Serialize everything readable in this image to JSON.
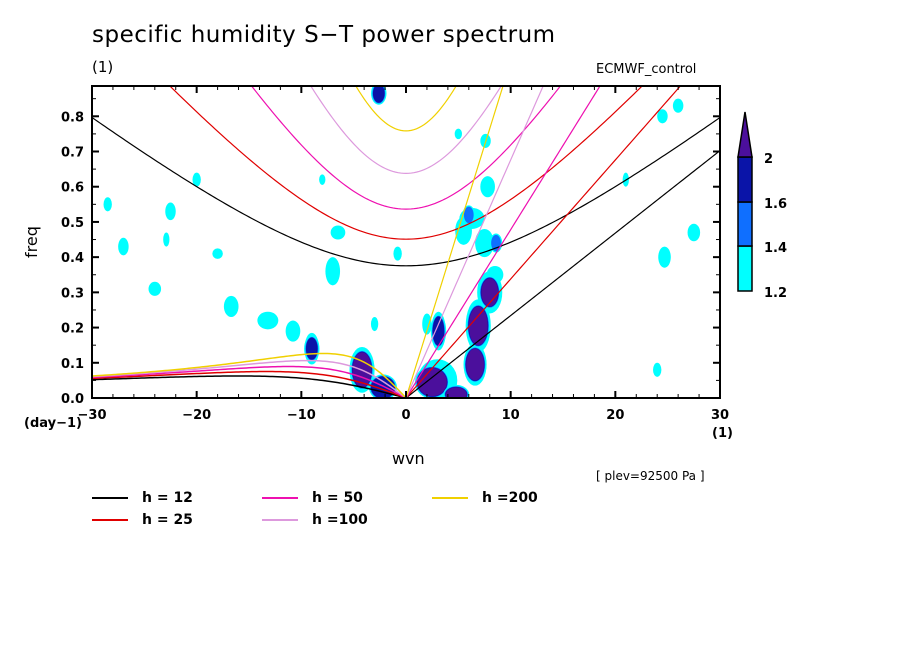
{
  "chart_data": {
    "type": "heatmap",
    "title": "specific humidity S−T power spectrum",
    "subtitle_left": "(1)",
    "subtitle_right": "ECMWF_control",
    "xlabel": "wvn",
    "ylabel": "freq",
    "x_unit": "(1)",
    "y_unit": "(day−1)",
    "annotation": "[ plev=92500 Pa ]",
    "xlim": [
      -30,
      30
    ],
    "ylim": [
      0.0,
      0.886
    ],
    "xticks": [
      -30,
      -20,
      -10,
      0,
      10,
      20,
      30
    ],
    "xtick_labels": [
      "−30",
      "−20",
      "−10",
      "0",
      "10",
      "20",
      "30"
    ],
    "yticks": [
      0.0,
      0.1,
      0.2,
      0.3,
      0.4,
      0.5,
      0.6,
      0.7,
      0.8
    ],
    "ytick_labels": [
      "0.0",
      "0.1",
      "0.2",
      "0.3",
      "0.4",
      "0.5",
      "0.6",
      "0.7",
      "0.8"
    ],
    "colorbar": {
      "levels": [
        1.2,
        1.4,
        1.6,
        2
      ],
      "labels": [
        "1.2",
        "1.4",
        "1.6",
        "2"
      ],
      "colors": [
        "#00ffff",
        "#0f6fff",
        "#0a14a8",
        "#4b0f9c"
      ],
      "extend": "max"
    },
    "dispersion_curves": {
      "equivalent_depths_m": [
        12,
        25,
        50,
        100,
        200
      ],
      "colors": [
        "#000000",
        "#e00000",
        "#ee10b0",
        "#dd99dd",
        "#f0d000"
      ],
      "legend_labels": [
        "h = 12",
        "h = 25",
        "h = 50",
        "h =100",
        "h =200"
      ],
      "modes": [
        "kelvin",
        "eig_n1",
        "er_n1"
      ]
    },
    "contour_regions": [
      {
        "k": -4.2,
        "f": 0.08,
        "rk": 0.9,
        "rf": 0.05,
        "level": 4
      },
      {
        "k": -4.2,
        "f": 0.08,
        "rk": 1.2,
        "rf": 0.065,
        "level": 1
      },
      {
        "k": -2.2,
        "f": 0.03,
        "rk": 1.1,
        "rf": 0.03,
        "level": 3
      },
      {
        "k": 2.5,
        "f": 0.045,
        "rk": 1.4,
        "rf": 0.04,
        "level": 4
      },
      {
        "k": 3.0,
        "f": 0.05,
        "rk": 1.9,
        "rf": 0.06,
        "level": 1
      },
      {
        "k": 4.8,
        "f": 0.01,
        "rk": 1.0,
        "rf": 0.02,
        "level": 4
      },
      {
        "k": 6.6,
        "f": 0.095,
        "rk": 0.85,
        "rf": 0.045,
        "level": 4
      },
      {
        "k": 6.6,
        "f": 0.095,
        "rk": 1.1,
        "rf": 0.06,
        "level": 1
      },
      {
        "k": 6.9,
        "f": 0.205,
        "rk": 0.9,
        "rf": 0.055,
        "level": 4
      },
      {
        "k": 6.9,
        "f": 0.205,
        "rk": 1.2,
        "rf": 0.075,
        "level": 1
      },
      {
        "k": 8.0,
        "f": 0.3,
        "rk": 0.8,
        "rf": 0.04,
        "level": 4
      },
      {
        "k": 8.0,
        "f": 0.3,
        "rk": 1.2,
        "rf": 0.06,
        "level": 1
      },
      {
        "k": 3.1,
        "f": 0.19,
        "rk": 0.5,
        "rf": 0.04,
        "level": 3
      },
      {
        "k": 3.1,
        "f": 0.19,
        "rk": 0.7,
        "rf": 0.055,
        "level": 1
      },
      {
        "k": 2.0,
        "f": 0.21,
        "rk": 0.45,
        "rf": 0.03,
        "level": 1
      },
      {
        "k": -9.0,
        "f": 0.14,
        "rk": 0.5,
        "rf": 0.03,
        "level": 3
      },
      {
        "k": -9.0,
        "f": 0.14,
        "rk": 0.7,
        "rf": 0.045,
        "level": 1
      },
      {
        "k": -10.8,
        "f": 0.19,
        "rk": 0.7,
        "rf": 0.03,
        "level": 1
      },
      {
        "k": -13.2,
        "f": 0.22,
        "rk": 1.0,
        "rf": 0.025,
        "level": 1
      },
      {
        "k": -16.7,
        "f": 0.26,
        "rk": 0.7,
        "rf": 0.03,
        "level": 1
      },
      {
        "k": -3.0,
        "f": 0.21,
        "rk": 0.35,
        "rf": 0.02,
        "level": 1
      },
      {
        "k": -0.8,
        "f": 0.41,
        "rk": 0.4,
        "rf": 0.02,
        "level": 1
      },
      {
        "k": 7.5,
        "f": 0.44,
        "rk": 0.9,
        "rf": 0.04,
        "level": 1
      },
      {
        "k": 8.6,
        "f": 0.44,
        "rk": 0.35,
        "rf": 0.02,
        "level": 2
      },
      {
        "k": 6.3,
        "f": 0.51,
        "rk": 1.2,
        "rf": 0.03,
        "level": 1
      },
      {
        "k": 5.5,
        "f": 0.475,
        "rk": 0.8,
        "rf": 0.04,
        "level": 1
      },
      {
        "k": 6.0,
        "f": 0.52,
        "rk": 0.35,
        "rf": 0.02,
        "level": 2
      },
      {
        "k": 8.5,
        "f": 0.35,
        "rk": 0.8,
        "rf": 0.025,
        "level": 1
      },
      {
        "k": 7.8,
        "f": 0.6,
        "rk": 0.7,
        "rf": 0.03,
        "level": 1
      },
      {
        "k": 7.6,
        "f": 0.73,
        "rk": 0.5,
        "rf": 0.02,
        "level": 1
      },
      {
        "k": -7.0,
        "f": 0.36,
        "rk": 0.7,
        "rf": 0.04,
        "level": 1
      },
      {
        "k": -2.6,
        "f": 0.865,
        "rk": 0.5,
        "rf": 0.025,
        "level": 3
      },
      {
        "k": -2.6,
        "f": 0.87,
        "rk": 0.7,
        "rf": 0.025,
        "level": 1
      },
      {
        "k": -22.5,
        "f": 0.53,
        "rk": 0.5,
        "rf": 0.025,
        "level": 1
      },
      {
        "k": -22.9,
        "f": 0.45,
        "rk": 0.3,
        "rf": 0.02,
        "level": 1
      },
      {
        "k": -24.0,
        "f": 0.31,
        "rk": 0.6,
        "rf": 0.02,
        "level": 1
      },
      {
        "k": -27.0,
        "f": 0.43,
        "rk": 0.5,
        "rf": 0.025,
        "level": 1
      },
      {
        "k": -28.5,
        "f": 0.55,
        "rk": 0.4,
        "rf": 0.02,
        "level": 1
      },
      {
        "k": -6.5,
        "f": 0.47,
        "rk": 0.7,
        "rf": 0.02,
        "level": 1
      },
      {
        "k": 24.7,
        "f": 0.4,
        "rk": 0.6,
        "rf": 0.03,
        "level": 1
      },
      {
        "k": 24.5,
        "f": 0.8,
        "rk": 0.5,
        "rf": 0.02,
        "level": 1
      },
      {
        "k": 26.0,
        "f": 0.83,
        "rk": 0.5,
        "rf": 0.02,
        "level": 1
      },
      {
        "k": 27.5,
        "f": 0.47,
        "rk": 0.6,
        "rf": 0.025,
        "level": 1
      },
      {
        "k": 24.0,
        "f": 0.08,
        "rk": 0.4,
        "rf": 0.02,
        "level": 1
      },
      {
        "k": -8.0,
        "f": 0.62,
        "rk": 0.3,
        "rf": 0.015,
        "level": 1
      },
      {
        "k": 21.0,
        "f": 0.62,
        "rk": 0.3,
        "rf": 0.02,
        "level": 1
      },
      {
        "k": -18.0,
        "f": 0.41,
        "rk": 0.5,
        "rf": 0.015,
        "level": 1
      },
      {
        "k": -20.0,
        "f": 0.62,
        "rk": 0.4,
        "rf": 0.02,
        "level": 1
      },
      {
        "k": 5.0,
        "f": 0.75,
        "rk": 0.35,
        "rf": 0.015,
        "level": 1
      }
    ]
  }
}
